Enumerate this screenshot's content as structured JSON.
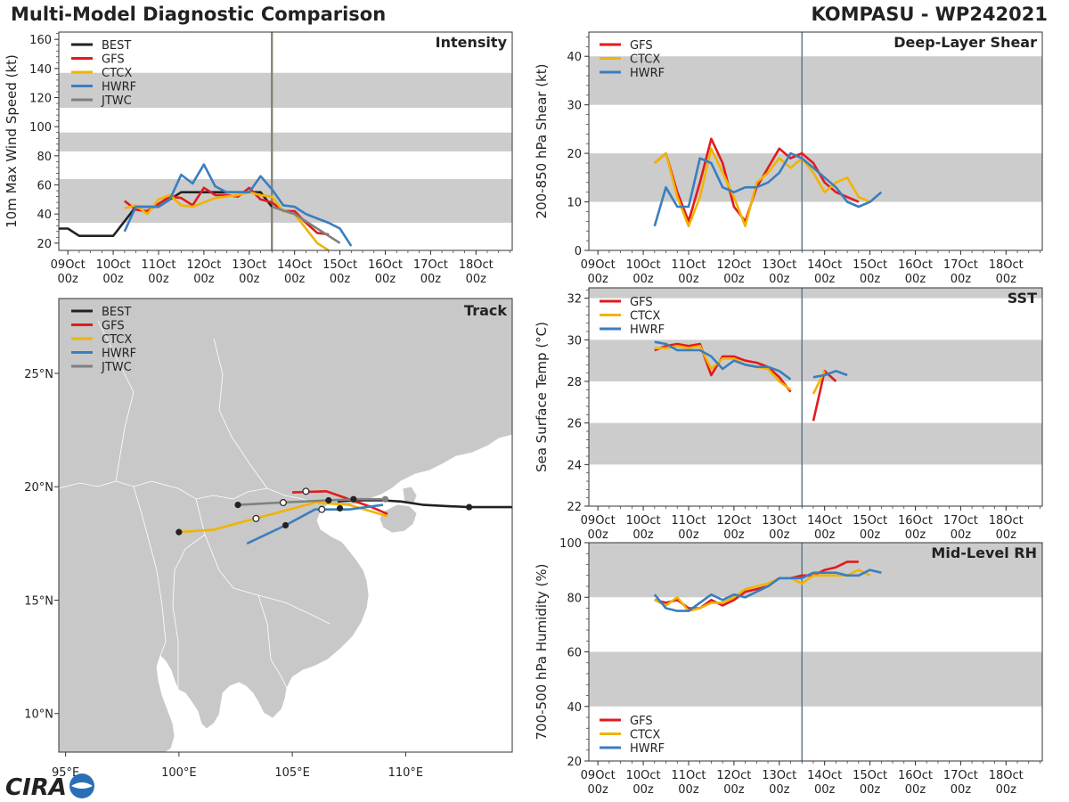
{
  "header": {
    "title_left": "Multi-Model Diagnostic Comparison",
    "title_right": "KOMPASU - WP242021"
  },
  "logo": {
    "text": "CIRA"
  },
  "colors": {
    "BEST": "#222222",
    "GFS": "#e31a1c",
    "CTCX": "#f0b400",
    "HWRF": "#3a7ebf",
    "JTWC": "#808080",
    "band": "#cccccc",
    "land": "#c8c8c8",
    "vline_intensity": "#857c70",
    "vline": "#5a7388"
  },
  "time_axis": {
    "ticks": [
      "09Oct\n00z",
      "10Oct\n00z",
      "11Oct\n00z",
      "12Oct\n00z",
      "13Oct\n00z",
      "14Oct\n00z",
      "15Oct\n00z",
      "16Oct\n00z",
      "17Oct\n00z",
      "18Oct\n00z"
    ],
    "start_day": 9,
    "end_day": 18.8,
    "current_time": 13.5
  },
  "chart_data": [
    {
      "id": "intensity",
      "type": "line",
      "title": "Intensity",
      "ylabel": "10m Max Wind Speed (kt)",
      "ylim": [
        15,
        165
      ],
      "xlim": [
        8.8,
        18.8
      ],
      "yticks": [
        20,
        40,
        60,
        80,
        100,
        120,
        140,
        160
      ],
      "bands": [
        [
          34,
          64
        ],
        [
          83,
          96
        ],
        [
          113,
          137
        ]
      ],
      "legend": [
        "BEST",
        "GFS",
        "CTCX",
        "HWRF",
        "JTWC"
      ],
      "series": [
        {
          "name": "BEST",
          "x": [
            8.75,
            9.0,
            9.25,
            9.5,
            9.75,
            10.0,
            10.25,
            10.5,
            10.75,
            11.0,
            11.25,
            11.5,
            11.75,
            12.0,
            12.25,
            12.5,
            12.75,
            13.0,
            13.25,
            13.5
          ],
          "y": [
            30,
            30,
            25,
            25,
            25,
            25,
            35,
            45,
            45,
            45,
            50,
            55,
            55,
            55,
            55,
            55,
            55,
            55,
            55,
            45
          ]
        },
        {
          "name": "GFS",
          "x": [
            10.25,
            10.5,
            10.75,
            11.0,
            11.25,
            11.5,
            11.75,
            12.0,
            12.25,
            12.5,
            12.75,
            13.0,
            13.25,
            13.5,
            13.75,
            14.0,
            14.25,
            14.5,
            14.75
          ],
          "y": [
            49,
            43,
            42,
            47,
            52,
            51,
            46,
            58,
            53,
            53,
            52,
            58,
            50,
            48,
            42,
            42,
            34,
            27,
            26
          ]
        },
        {
          "name": "CTCX",
          "x": [
            10.25,
            10.5,
            10.75,
            11.0,
            11.25,
            11.5,
            11.75,
            12.0,
            12.25,
            12.5,
            12.75,
            13.0,
            13.25,
            13.5,
            13.75,
            14.0,
            14.25,
            14.5,
            14.75
          ],
          "y": [
            44,
            46,
            40,
            50,
            53,
            46,
            45,
            48,
            51,
            52,
            53,
            55,
            53,
            52,
            42,
            40,
            30,
            20,
            15
          ]
        },
        {
          "name": "HWRF",
          "x": [
            10.25,
            10.5,
            10.75,
            11.0,
            11.25,
            11.5,
            11.75,
            12.0,
            12.25,
            12.5,
            12.75,
            13.0,
            13.25,
            13.5,
            13.75,
            14.0,
            14.25,
            14.5,
            14.75,
            15.0,
            15.25
          ],
          "y": [
            28,
            45,
            45,
            45,
            50,
            67,
            61,
            74,
            59,
            55,
            55,
            55,
            66,
            57,
            46,
            45,
            40,
            37,
            34,
            30,
            18
          ]
        },
        {
          "name": "JTWC",
          "x": [
            13.5,
            14.0,
            14.5,
            15.0
          ],
          "y": [
            45,
            40,
            30,
            20
          ]
        }
      ]
    },
    {
      "id": "shear",
      "type": "line",
      "title": "Deep-Layer Shear",
      "ylabel": "200-850 hPa Shear (kt)",
      "ylim": [
        0,
        45
      ],
      "xlim": [
        8.8,
        18.8
      ],
      "yticks": [
        0,
        10,
        20,
        30,
        40
      ],
      "bands": [
        [
          10,
          20
        ],
        [
          30,
          40
        ]
      ],
      "legend": [
        "GFS",
        "CTCX",
        "HWRF"
      ],
      "series": [
        {
          "name": "GFS",
          "x": [
            10.25,
            10.5,
            10.75,
            11.0,
            11.25,
            11.5,
            11.75,
            12.0,
            12.25,
            12.5,
            12.75,
            13.0,
            13.25,
            13.5,
            13.75,
            14.0,
            14.25,
            14.5,
            14.75
          ],
          "y": [
            18,
            20,
            12,
            6,
            14,
            23,
            18,
            9,
            6,
            13,
            17,
            21,
            19,
            20,
            18,
            14,
            12,
            11,
            10
          ]
        },
        {
          "name": "CTCX",
          "x": [
            10.25,
            10.5,
            10.75,
            11.0,
            11.25,
            11.5,
            11.75,
            12.0,
            12.25,
            12.5,
            12.75,
            13.0,
            13.25,
            13.5,
            13.75,
            14.0,
            14.25,
            14.5,
            14.75,
            15.0
          ],
          "y": [
            18,
            20,
            11,
            5,
            11,
            21,
            16,
            11,
            5,
            14,
            16,
            19,
            17,
            19,
            16,
            12,
            14,
            15,
            11,
            10
          ]
        },
        {
          "name": "HWRF",
          "x": [
            10.25,
            10.5,
            10.75,
            11.0,
            11.25,
            11.5,
            11.75,
            12.0,
            12.25,
            12.5,
            12.75,
            13.0,
            13.25,
            13.5,
            13.75,
            14.0,
            14.25,
            14.5,
            14.75,
            15.0,
            15.25
          ],
          "y": [
            5,
            13,
            9,
            9,
            19,
            18,
            13,
            12,
            13,
            13,
            14,
            16,
            20,
            19,
            17,
            15,
            13,
            10,
            9,
            10,
            12
          ]
        }
      ]
    },
    {
      "id": "sst",
      "type": "line",
      "title": "SST",
      "ylabel": "Sea Surface Temp (°C)",
      "ylim": [
        22,
        32.5
      ],
      "xlim": [
        8.8,
        18.8
      ],
      "yticks": [
        22,
        24,
        26,
        28,
        30,
        32
      ],
      "bands": [
        [
          24,
          26
        ],
        [
          28,
          30
        ],
        [
          32,
          32.5
        ]
      ],
      "legend": [
        "GFS",
        "CTCX",
        "HWRF"
      ],
      "series": [
        {
          "name": "GFS",
          "segments": [
            {
              "x": [
                10.25,
                10.5,
                10.75,
                11.0,
                11.25,
                11.5,
                11.75,
                12.0,
                12.25,
                12.5,
                12.75,
                13.0,
                13.25
              ],
              "y": [
                29.5,
                29.7,
                29.8,
                29.7,
                29.8,
                28.3,
                29.2,
                29.2,
                29.0,
                28.9,
                28.7,
                28.2,
                27.5
              ]
            },
            {
              "x": [
                13.75,
                14.0,
                14.25
              ],
              "y": [
                26.1,
                28.5,
                28.0
              ]
            }
          ]
        },
        {
          "name": "CTCX",
          "segments": [
            {
              "x": [
                10.25,
                10.5,
                10.75,
                11.0,
                11.25,
                11.5,
                11.75,
                12.0,
                12.25,
                12.5,
                12.75,
                13.0,
                13.25
              ],
              "y": [
                29.6,
                29.6,
                29.7,
                29.6,
                29.7,
                28.6,
                29.1,
                29.1,
                28.8,
                28.7,
                28.6,
                28.0,
                27.6
              ]
            },
            {
              "x": [
                13.75,
                14.0
              ],
              "y": [
                27.4,
                28.5
              ]
            }
          ]
        },
        {
          "name": "HWRF",
          "segments": [
            {
              "x": [
                10.25,
                10.5,
                10.75,
                11.0,
                11.25,
                11.5,
                11.75,
                12.0,
                12.25,
                12.5,
                12.75,
                13.0,
                13.25
              ],
              "y": [
                29.9,
                29.8,
                29.5,
                29.5,
                29.5,
                29.2,
                28.6,
                29.0,
                28.8,
                28.7,
                28.7,
                28.5,
                28.1
              ]
            },
            {
              "x": [
                13.75,
                14.0,
                14.25,
                14.5
              ],
              "y": [
                28.2,
                28.3,
                28.5,
                28.3
              ]
            }
          ]
        }
      ]
    },
    {
      "id": "rh",
      "type": "line",
      "title": "Mid-Level RH",
      "ylabel": "700-500 hPa Humidity (%)",
      "ylim": [
        20,
        100
      ],
      "xlim": [
        8.8,
        18.8
      ],
      "yticks": [
        20,
        40,
        60,
        80,
        100
      ],
      "bands": [
        [
          40,
          60
        ],
        [
          80,
          100
        ]
      ],
      "legend": [
        "GFS",
        "CTCX",
        "HWRF"
      ],
      "series": [
        {
          "name": "GFS",
          "x": [
            10.25,
            10.5,
            10.75,
            11.0,
            11.25,
            11.5,
            11.75,
            12.0,
            12.25,
            12.5,
            12.75,
            13.0,
            13.25,
            13.5,
            13.75,
            14.0,
            14.25,
            14.5,
            14.75
          ],
          "y": [
            79,
            78,
            79,
            76,
            76,
            79,
            77,
            79,
            82,
            83,
            84,
            87,
            87,
            88,
            88,
            90,
            91,
            93,
            93
          ]
        },
        {
          "name": "CTCX",
          "x": [
            10.25,
            10.5,
            10.75,
            11.0,
            11.25,
            11.5,
            11.75,
            12.0,
            12.25,
            12.5,
            12.75,
            13.0,
            13.25,
            13.5,
            13.75,
            14.0,
            14.25,
            14.5,
            14.75,
            15.0
          ],
          "y": [
            79,
            77,
            80,
            75,
            76,
            78,
            78,
            80,
            83,
            84,
            85,
            87,
            87,
            85,
            88,
            88,
            88,
            88,
            90,
            88
          ]
        },
        {
          "name": "HWRF",
          "x": [
            10.25,
            10.5,
            10.75,
            11.0,
            11.25,
            11.5,
            11.75,
            12.0,
            12.25,
            12.5,
            12.75,
            13.0,
            13.25,
            13.5,
            13.75,
            14.0,
            14.25,
            14.5,
            14.75,
            15.0,
            15.25
          ],
          "y": [
            81,
            76,
            75,
            75,
            78,
            81,
            79,
            81,
            80,
            82,
            84,
            87,
            87,
            87,
            89,
            89,
            89,
            88,
            88,
            90,
            89
          ]
        }
      ]
    },
    {
      "id": "track",
      "type": "scatter",
      "title": "Track",
      "xlim": [
        94.7,
        114.7
      ],
      "ylim": [
        8.3,
        28.3
      ],
      "xticks": [
        95,
        100,
        105,
        110
      ],
      "xtick_labels": [
        "95°E",
        "100°E",
        "105°E",
        "110°E"
      ],
      "yticks": [
        10,
        15,
        20,
        25
      ],
      "ytick_labels": [
        "10°N",
        "15°N",
        "20°N",
        "25°N"
      ],
      "legend": [
        "BEST",
        "GFS",
        "CTCX",
        "HWRF",
        "JTWC"
      ],
      "series": [
        {
          "name": "BEST",
          "lon": [
            114.7,
            113.8,
            112.8,
            111.8,
            110.8,
            109.8,
            109.0,
            108.3,
            107.6,
            107.0
          ],
          "lat": [
            19.1,
            19.1,
            19.1,
            19.15,
            19.2,
            19.35,
            19.4,
            19.4,
            19.4,
            19.35
          ],
          "dots_filled": [
            [
              112.8,
              19.1
            ]
          ]
        },
        {
          "name": "GFS",
          "lon": [
            105.0,
            106.5,
            107.5,
            108.5,
            109.2
          ],
          "lat": [
            19.75,
            19.8,
            19.45,
            19.1,
            18.8
          ],
          "dots_open": [
            [
              105.6,
              19.8
            ]
          ]
        },
        {
          "name": "CTCX",
          "lon": [
            100.0,
            101.5,
            103.0,
            104.5,
            106.0,
            107.5,
            109.2
          ],
          "lat": [
            18.0,
            18.1,
            18.5,
            18.9,
            19.3,
            19.2,
            18.7
          ],
          "dots_open": [
            [
              103.4,
              18.6
            ]
          ]
        },
        {
          "name": "HWRF",
          "lon": [
            103.0,
            104.7,
            106.0,
            107.5,
            109.0
          ],
          "lat": [
            17.5,
            18.3,
            19.0,
            19.0,
            19.2
          ],
          "dots_filled": [
            [
              104.7,
              18.3
            ],
            [
              107.1,
              19.05
            ]
          ],
          "dots_open": [
            [
              106.3,
              19.0
            ]
          ]
        },
        {
          "name": "JTWC",
          "lon": [
            102.6,
            104.5,
            106.5,
            108.0,
            109.1
          ],
          "lat": [
            19.2,
            19.3,
            19.4,
            19.45,
            19.45
          ],
          "dots_filled": [
            [
              102.6,
              19.2
            ],
            [
              106.6,
              19.4
            ],
            [
              107.7,
              19.45
            ]
          ],
          "dots_open": [
            [
              104.6,
              19.3
            ]
          ],
          "dots_gray": [
            [
              109.1,
              19.45
            ]
          ]
        },
        {
          "name": "CTCX_start",
          "lon": [],
          "lat": [],
          "dots_filled": [
            [
              100.0,
              18.0
            ]
          ]
        }
      ]
    }
  ]
}
